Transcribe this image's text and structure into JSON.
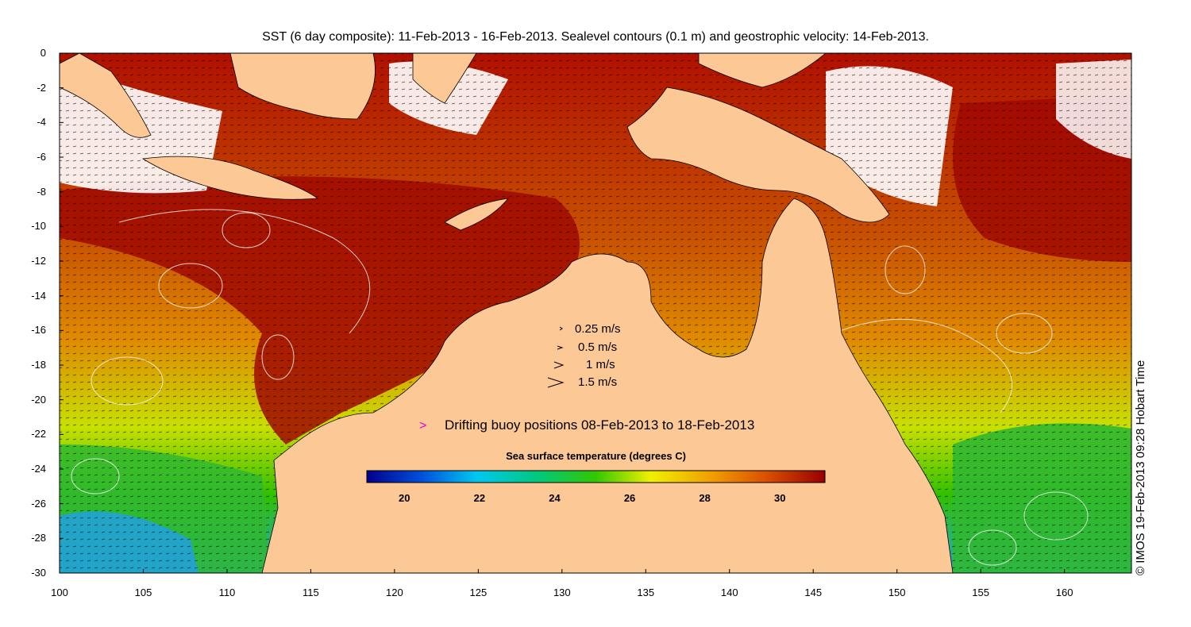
{
  "title": "SST (6 day composite): 11-Feb-2013 - 16-Feb-2013. Sealevel contours (0.1 m) and geostrophic velocity: 14-Feb-2013.",
  "map": {
    "lon_range": [
      100,
      164
    ],
    "lat_range": [
      -30,
      0
    ],
    "x_ticks": [
      "100",
      "105",
      "110",
      "115",
      "120",
      "125",
      "130",
      "135",
      "140",
      "145",
      "150",
      "155",
      "160"
    ],
    "y_ticks": [
      "0",
      "-2",
      "-4",
      "-6",
      "-8",
      "-10",
      "-12",
      "-14",
      "-16",
      "-18",
      "-20",
      "-22",
      "-24",
      "-26",
      "-28",
      "-30"
    ],
    "land_color": "#fcc896",
    "cloud_color": "#ffffff"
  },
  "velocity_legend": [
    {
      "label": "0.25 m/s"
    },
    {
      "label": "0.5 m/s"
    },
    {
      "label": "1 m/s"
    },
    {
      "label": "1.5 m/s"
    }
  ],
  "buoy_legend": {
    "marker": ">",
    "label": "Drifting buoy positions 08-Feb-2013 to 18-Feb-2013",
    "color": "#e000e0"
  },
  "colorbar": {
    "title": "Sea surface temperature (degrees C)",
    "range": [
      19,
      31.2
    ],
    "ticks": [
      "20",
      "22",
      "24",
      "26",
      "28",
      "30"
    ],
    "colors": [
      "#00008c",
      "#0050dc",
      "#00c8f0",
      "#00c880",
      "#32c800",
      "#f0f000",
      "#f0a000",
      "#dc5000",
      "#960000"
    ]
  },
  "credit": "© IMOS 19-Feb-2013 09:28 Hobart Time"
}
